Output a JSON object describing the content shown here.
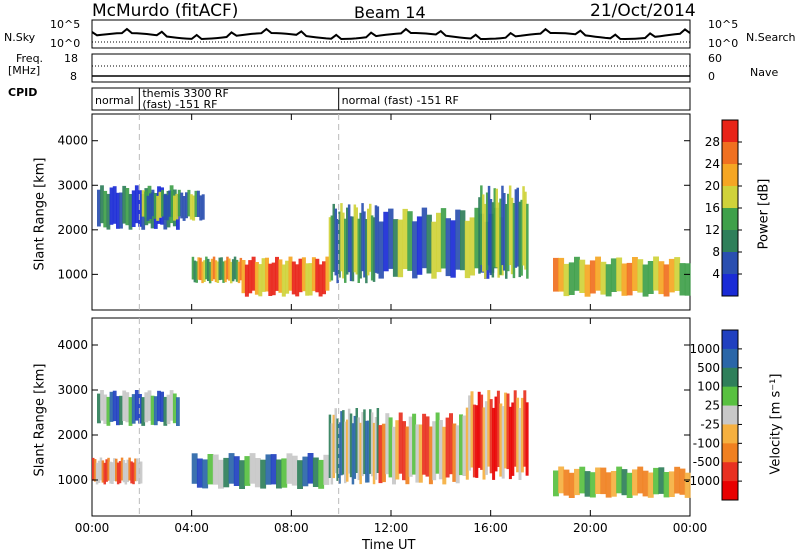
{
  "header": {
    "station": "McMurdo (fitACF)",
    "beam": "Beam 14",
    "date": "21/Oct/2014"
  },
  "top_panels": {
    "nsky_label": "N.Sky",
    "nsearch_label": "N.Search",
    "count_ticks": [
      "10^5",
      "10^0"
    ],
    "freq_label_1": "Freq.",
    "freq_label_2": "[MHz]",
    "freq_ticks": [
      "18",
      "8"
    ],
    "nave_label": "Nave",
    "nave_ticks": [
      "60",
      "0"
    ],
    "cpid_label": "CPID",
    "cpid_segments": [
      {
        "label": "normal",
        "start_hour": 0.0,
        "end_hour": 1.9
      },
      {
        "label": "themis 3300 RF\n(fast) -151 RF",
        "start_hour": 1.9,
        "end_hour": 9.9
      },
      {
        "label": "normal (fast) -151 RF",
        "start_hour": 9.9,
        "end_hour": 24.0
      }
    ]
  },
  "chart_data": [
    {
      "type": "heatmap",
      "name": "Power",
      "ylabel": "Slant Range [km]",
      "ylim": [
        200,
        4600
      ],
      "xlim_hours": [
        0,
        24
      ],
      "yticks": [
        1000,
        2000,
        3000,
        4000
      ],
      "colorbar_label": "Power [dB]",
      "colorbar_ticks": [
        "4",
        "8",
        "12",
        "16",
        "20",
        "24",
        "28"
      ],
      "colorbar_colors": [
        "#1a2bd6",
        "#2a4fb0",
        "#2f7f5a",
        "#3fa04a",
        "#cfd23a",
        "#f5a623",
        "#f07020",
        "#e82418"
      ],
      "regions": [
        {
          "t0": 0.2,
          "t1": 3.5,
          "r0": 2000,
          "r1": 3000,
          "level": 0.15
        },
        {
          "t0": 2.0,
          "t1": 4.5,
          "r0": 2200,
          "r1": 2900,
          "level": 0.35
        },
        {
          "t0": 4.0,
          "t1": 6.0,
          "r0": 800,
          "r1": 1400,
          "level": 0.55
        },
        {
          "t0": 6.0,
          "t1": 9.5,
          "r0": 500,
          "r1": 1400,
          "level": 0.8
        },
        {
          "t0": 9.5,
          "t1": 11.5,
          "r0": 800,
          "r1": 2600,
          "level": 0.35
        },
        {
          "t0": 11.5,
          "t1": 16.5,
          "r0": 900,
          "r1": 2500,
          "level": 0.3
        },
        {
          "t0": 15.5,
          "t1": 17.5,
          "r0": 900,
          "r1": 3000,
          "level": 0.35
        },
        {
          "t0": 18.5,
          "t1": 24.0,
          "r0": 500,
          "r1": 1400,
          "level": 0.6
        }
      ]
    },
    {
      "type": "heatmap",
      "name": "Velocity",
      "ylabel": "Slant Range [km]",
      "ylim": [
        200,
        4600
      ],
      "xlim_hours": [
        0,
        24
      ],
      "yticks": [
        1000,
        2000,
        3000,
        4000
      ],
      "xticks": [
        "00:00",
        "04:00",
        "08:00",
        "12:00",
        "16:00",
        "20:00",
        "00:00"
      ],
      "xlabel": "Time UT",
      "colorbar_label": "Velocity [m s⁻¹]",
      "colorbar_ticks": [
        "1000",
        "500",
        "100",
        "25",
        "-25",
        "-100",
        "-500",
        "-1000"
      ],
      "colorbar_colors": [
        "#2040c0",
        "#2a66a8",
        "#2f7f5a",
        "#58c040",
        "#c8c8c8",
        "#f5b040",
        "#f08020",
        "#e83020",
        "#e80000"
      ],
      "regions": [
        {
          "t0": 0.2,
          "t1": 3.5,
          "r0": 2200,
          "r1": 3000,
          "level": 0.25
        },
        {
          "t0": 0.0,
          "t1": 2.0,
          "r0": 900,
          "r1": 1500,
          "level": 0.7
        },
        {
          "t0": 4.0,
          "t1": 9.5,
          "r0": 800,
          "r1": 1600,
          "level": 0.3
        },
        {
          "t0": 9.5,
          "t1": 11.5,
          "r0": 900,
          "r1": 2600,
          "level": 0.35
        },
        {
          "t0": 11.5,
          "t1": 15.0,
          "r0": 900,
          "r1": 2500,
          "level": 0.65
        },
        {
          "t0": 15.0,
          "t1": 17.5,
          "r0": 1000,
          "r1": 3000,
          "level": 0.8
        },
        {
          "t0": 18.5,
          "t1": 24.0,
          "r0": 600,
          "r1": 1300,
          "level": 0.55
        }
      ]
    }
  ]
}
